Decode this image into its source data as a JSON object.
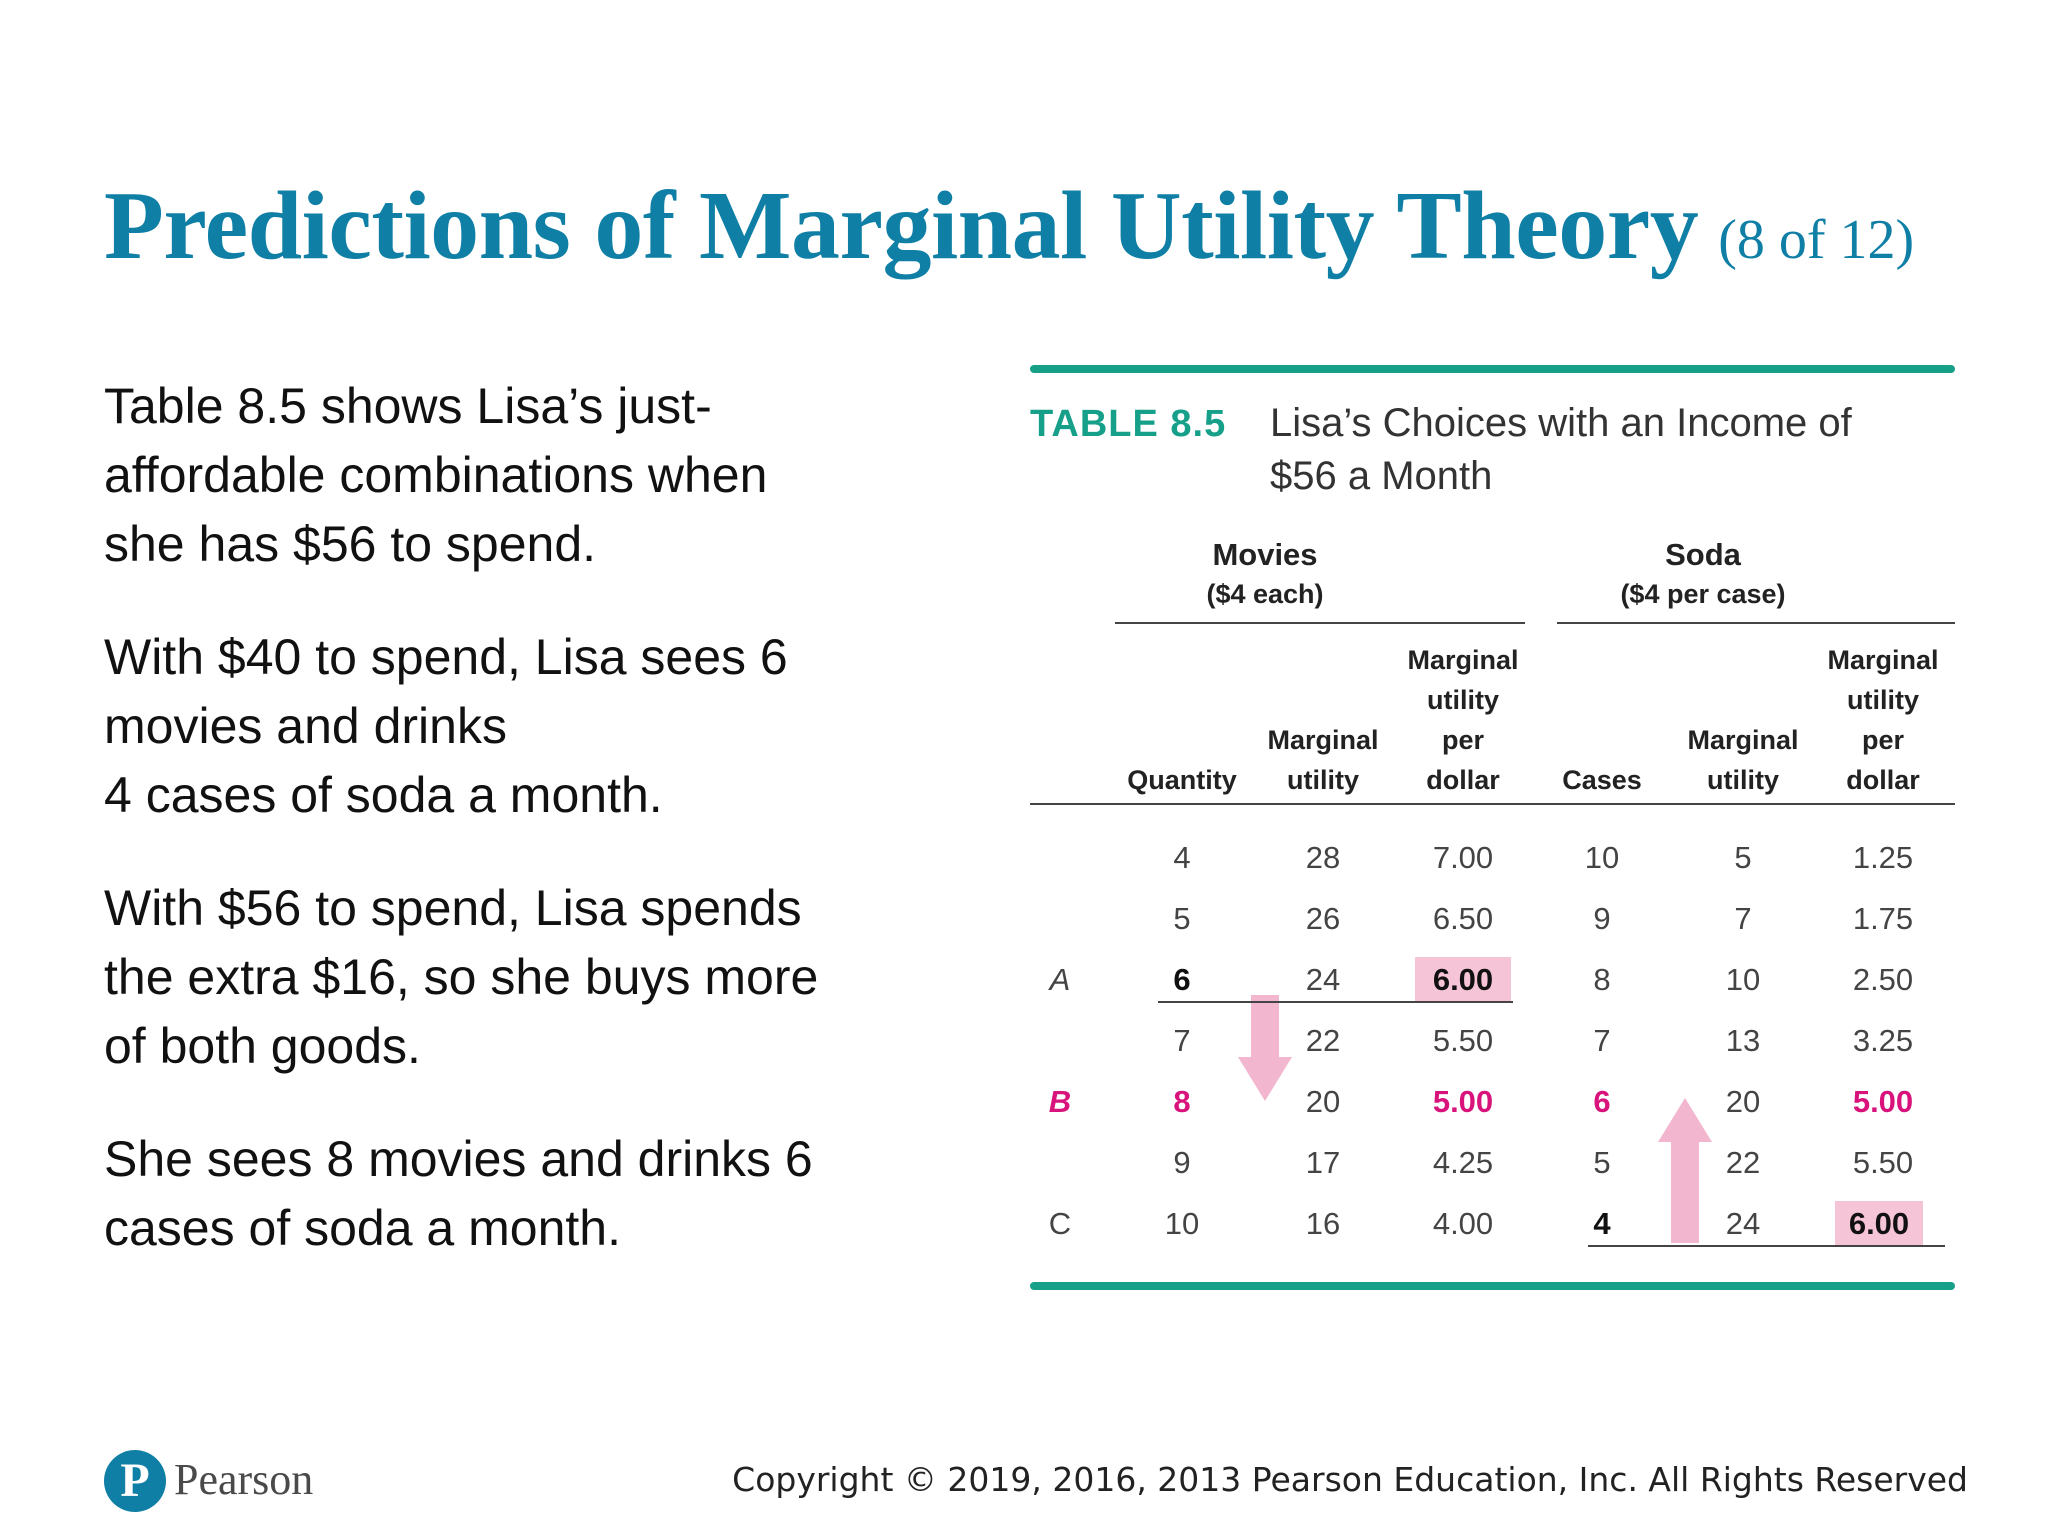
{
  "slide": {
    "title": "Predictions of Marginal Utility Theory",
    "counter": "(8 of 12)"
  },
  "body": {
    "paragraphs": [
      [
        "Table 8.5 shows Lisa’s just-",
        "affordable combinations when",
        "she has $56 to spend."
      ],
      [
        "With $40 to spend, Lisa sees 6",
        "movies and drinks",
        "4 cases of soda a month."
      ],
      [
        "With $56 to spend, Lisa spends",
        "the extra $16, so she buys more",
        "of both goods."
      ],
      [
        "She sees 8 movies and drinks 6",
        "cases of soda a month."
      ]
    ]
  },
  "table": {
    "label": "TABLE 8.5",
    "title": "Lisa’s Choices with an Income of $56 a Month",
    "movies_group": {
      "name": "Movies",
      "sub": "($4 each)"
    },
    "soda_group": {
      "name": "Soda",
      "sub": "($4 per case)"
    },
    "headers": {
      "quantity": "Quantity",
      "mu_movies": [
        "Marginal",
        "utility"
      ],
      "mupd_movies": [
        "Marginal",
        "utility",
        "per",
        "dollar"
      ],
      "cases": "Cases",
      "mu_soda": [
        "Marginal",
        "utility"
      ],
      "mupd_soda": [
        "Marginal",
        "utility",
        "per",
        "dollar"
      ]
    },
    "rows": [
      {
        "label": "",
        "quantity": "4",
        "mu_movies": "28",
        "mupd_movies": "7.00",
        "cases": "10",
        "mu_soda": "5",
        "mupd_soda": "1.25"
      },
      {
        "label": "",
        "quantity": "5",
        "mu_movies": "26",
        "mupd_movies": "6.50",
        "cases": "9",
        "mu_soda": "7",
        "mupd_soda": "1.75"
      },
      {
        "label": "A",
        "quantity": "6",
        "mu_movies": "24",
        "mupd_movies": "6.00",
        "cases": "8",
        "mu_soda": "10",
        "mupd_soda": "2.50"
      },
      {
        "label": "",
        "quantity": "7",
        "mu_movies": "22",
        "mupd_movies": "5.50",
        "cases": "7",
        "mu_soda": "13",
        "mupd_soda": "3.25"
      },
      {
        "label": "B",
        "quantity": "8",
        "mu_movies": "20",
        "mupd_movies": "5.00",
        "cases": "6",
        "mu_soda": "20",
        "mupd_soda": "5.00"
      },
      {
        "label": "",
        "quantity": "9",
        "mu_movies": "17",
        "mupd_movies": "4.25",
        "cases": "5",
        "mu_soda": "22",
        "mupd_soda": "5.50"
      },
      {
        "label": "C",
        "quantity": "10",
        "mu_movies": "16",
        "mupd_movies": "4.00",
        "cases": "4",
        "mu_soda": "24",
        "mupd_soda": "6.00"
      }
    ],
    "colors": {
      "rule": "#16a08a",
      "highlight": "#f6c4d7",
      "emphasis": "#d8137b",
      "arrow": "#f3b6cf"
    }
  },
  "footer": {
    "logo_text": "Pearson",
    "copyright": "Copyright © 2019, 2016, 2013 Pearson Education, Inc. All Rights Reserved"
  }
}
